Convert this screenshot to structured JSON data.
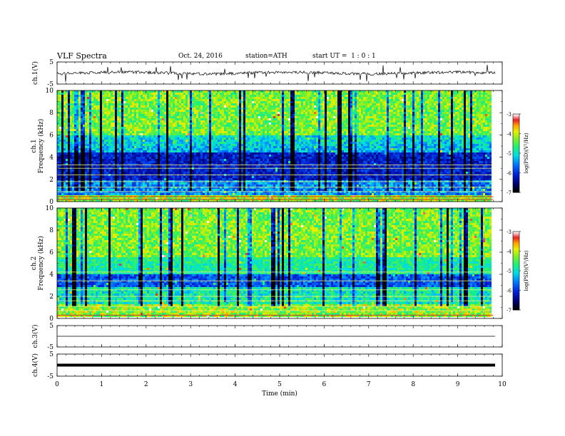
{
  "header": {
    "title": "VLF Spectra",
    "date": "Oct. 24, 2016",
    "station": "station=ATH",
    "start_ut": "start UT =  1 : 0 : 1"
  },
  "chart_data": {
    "type": "heatmap",
    "x_axis": {
      "label": "Time (min)",
      "range": [
        0,
        10
      ],
      "ticks": [
        0,
        1,
        2,
        3,
        4,
        5,
        6,
        7,
        8,
        9,
        10
      ],
      "data_end": 9.8
    },
    "panels": [
      {
        "kind": "waveform",
        "ylabel": "ch.1(V)",
        "ylim": [
          -5,
          5
        ],
        "yticks": [
          {
            "v": 5,
            "t": "5"
          },
          {
            "v": -5,
            "t": "-5"
          }
        ],
        "baseline": 0,
        "style": "noisy"
      },
      {
        "kind": "spectrogram",
        "ylabel": "ch.1 Frequency (kHz)",
        "ylim": [
          0,
          10
        ],
        "yticks": [
          0,
          2,
          4,
          6,
          8,
          10
        ],
        "colorbar": {
          "label": "log(PSD)(V²/Hz)",
          "range": [
            -7,
            -3
          ],
          "ticks": [
            -3,
            -4,
            -5,
            -6,
            -7
          ]
        }
      },
      {
        "kind": "spectrogram",
        "ylabel": "ch.2 Frequency (kHz)",
        "ylim": [
          0,
          10
        ],
        "yticks": [
          0,
          2,
          4,
          6,
          8,
          10
        ],
        "colorbar": {
          "label": "log(PSD)(V²/Hz)",
          "range": [
            -7,
            -3
          ],
          "ticks": [
            -3,
            -4,
            -5,
            -6,
            -7
          ]
        }
      },
      {
        "kind": "waveform",
        "ylabel": "ch.3(V)",
        "ylim": [
          -5,
          5
        ],
        "yticks": [
          {
            "v": 5,
            "t": "5"
          },
          {
            "v": -5,
            "t": "-5"
          }
        ],
        "baseline": 0,
        "style": "flat"
      },
      {
        "kind": "waveform",
        "ylabel": "ch.4(V)",
        "ylim": [
          -5,
          5
        ],
        "yticks": [
          {
            "v": 5,
            "t": "5"
          },
          {
            "v": -5,
            "t": "-5"
          }
        ],
        "baseline": 0,
        "style": "thick"
      }
    ]
  }
}
